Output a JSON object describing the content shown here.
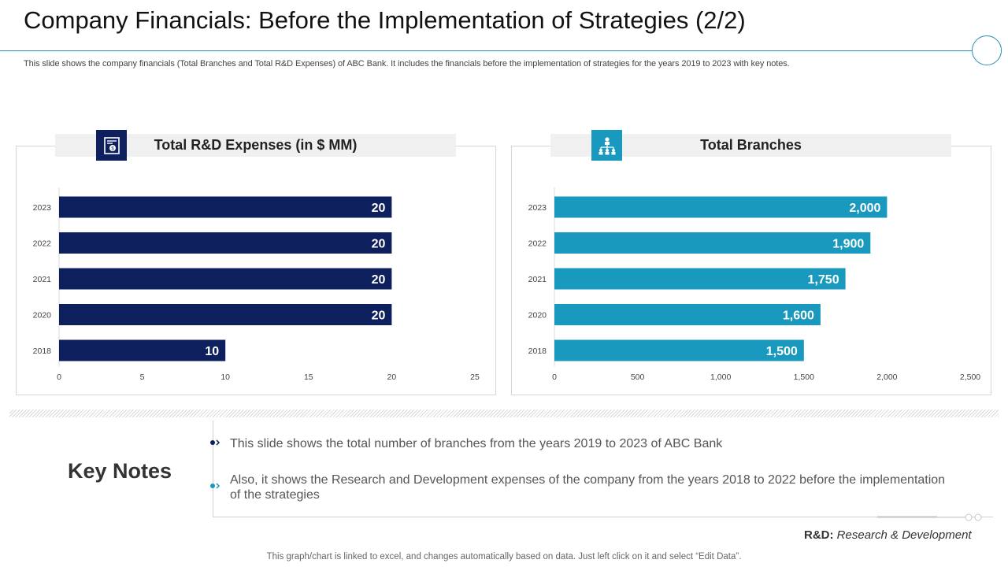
{
  "slide": {
    "title": "Company Financials: Before the Implementation of Strategies (2/2)",
    "subtitle": "This slide shows the company financials (Total Branches and Total R&D Expenses) of ABC Bank. It includes the financials before the implementation of strategies for the years 2019 to 2023 with key notes.",
    "footer": "This graph/chart is linked to excel,  and changes automatically based on data. Just left click on it and select “Edit Data”."
  },
  "key_notes": {
    "title": "Key Notes",
    "items": [
      "This slide shows the total number of branches from the years 2019 to 2023 of ABC Bank",
      "Also, it shows the Research and Development expenses of the company from the years 2018 to 2022 before the implementation of the strategies"
    ]
  },
  "abbreviation": {
    "key": "R&D:",
    "value": "Research & Development"
  },
  "icons": {
    "left": "money-document-icon",
    "right": "org-chart-icon"
  },
  "colors": {
    "navy": "#0d1f5c",
    "teal": "#1999bd",
    "accent_line": "#2a8fb8"
  },
  "chart_data": [
    {
      "type": "bar",
      "orientation": "horizontal",
      "title": "Total R&D Expenses (in $ MM)",
      "categories": [
        "2023",
        "2022",
        "2021",
        "2020",
        "2018"
      ],
      "values": [
        20,
        20,
        20,
        20,
        10
      ],
      "value_labels": [
        "20",
        "20",
        "20",
        "20",
        "10"
      ],
      "xlim": [
        0,
        25
      ],
      "xticks": [
        0,
        5,
        10,
        15,
        20,
        25
      ],
      "xtick_labels": [
        "0",
        "5",
        "10",
        "15",
        "20",
        "25"
      ],
      "color": "#0d1f5c"
    },
    {
      "type": "bar",
      "orientation": "horizontal",
      "title": "Total Branches",
      "categories": [
        "2023",
        "2022",
        "2021",
        "2020",
        "2018"
      ],
      "values": [
        2000,
        1900,
        1750,
        1600,
        1500
      ],
      "value_labels": [
        "2,000",
        "1,900",
        "1,750",
        "1,600",
        "1,500"
      ],
      "xlim": [
        0,
        2500
      ],
      "xticks": [
        0,
        500,
        1000,
        1500,
        2000,
        2500
      ],
      "xtick_labels": [
        "0",
        "500",
        "1,000",
        "1,500",
        "2,000",
        "2,500"
      ],
      "color": "#1999bd"
    }
  ]
}
